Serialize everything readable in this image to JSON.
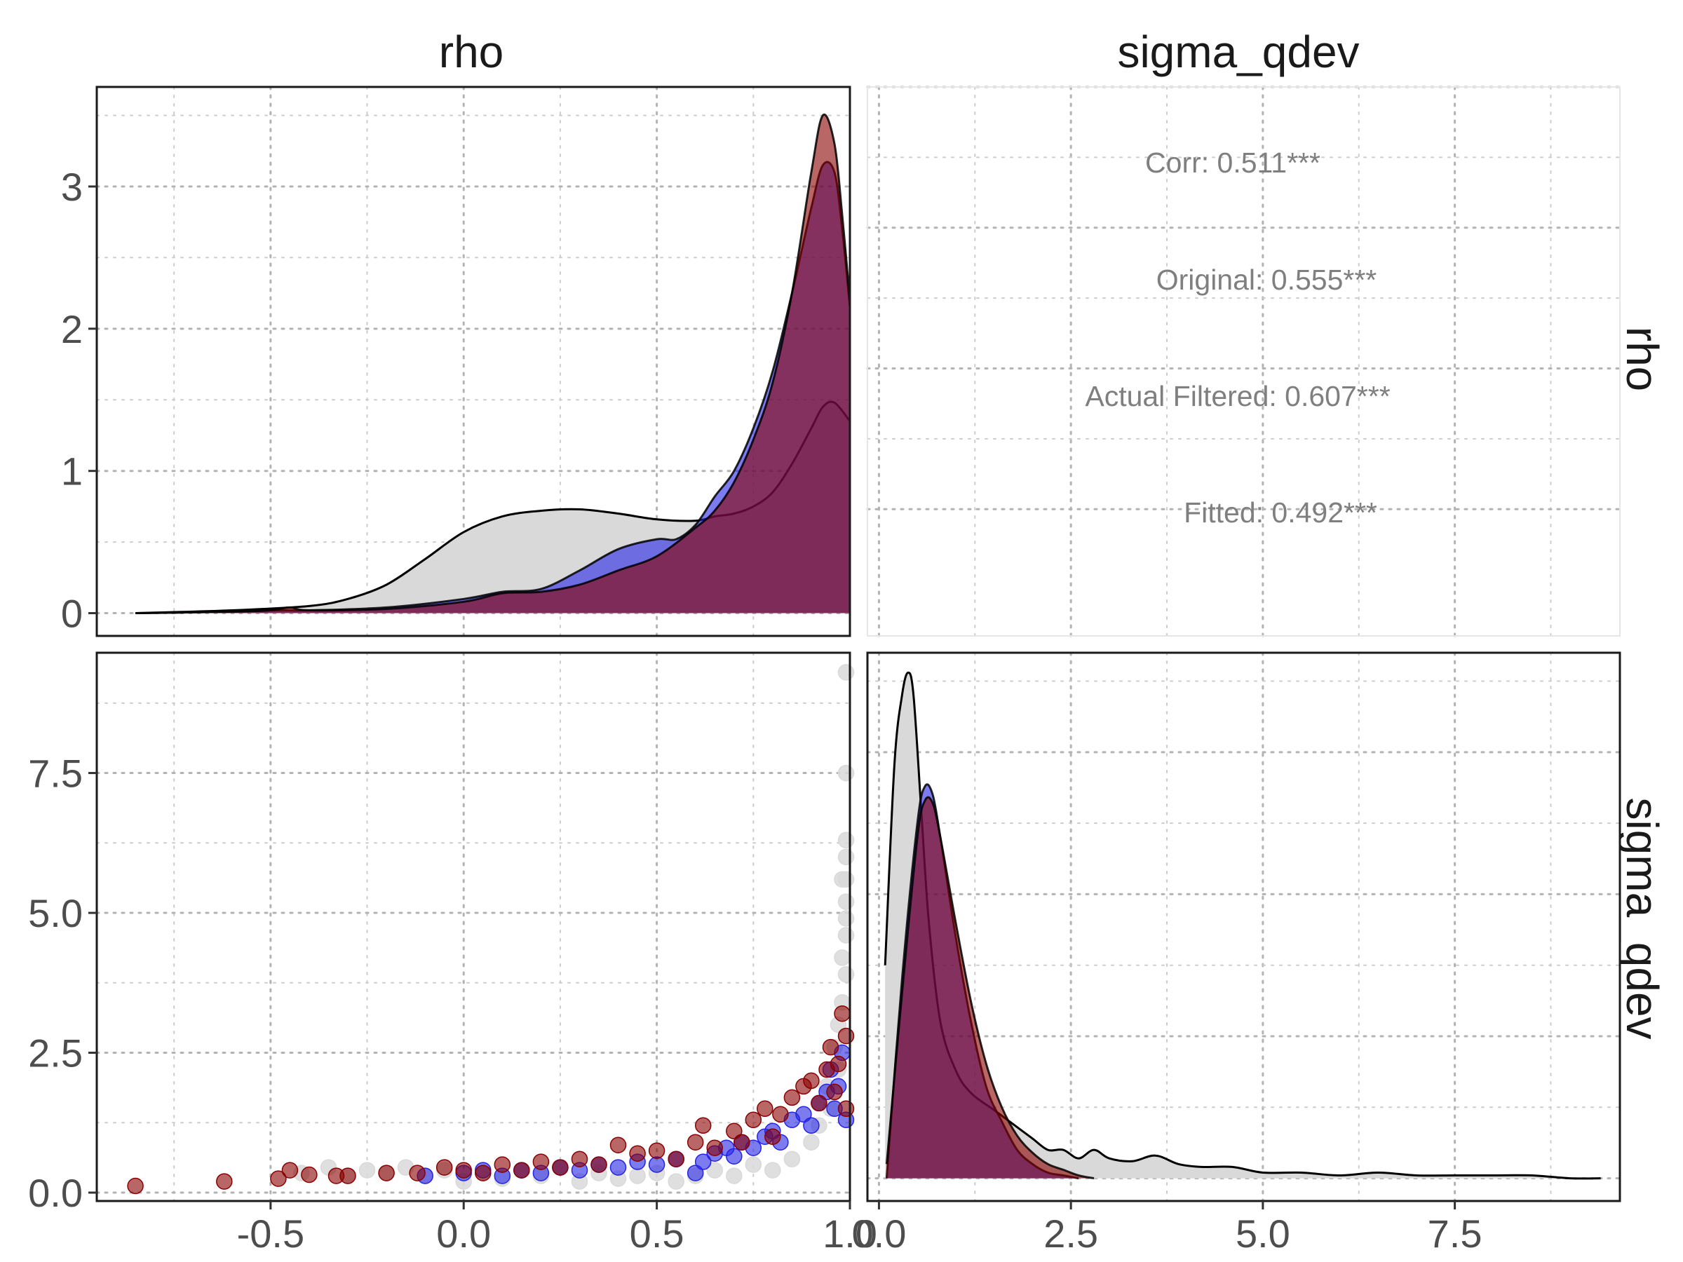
{
  "chart_data": {
    "type": "scatter-matrix",
    "variables": [
      "rho",
      "sigma_qdev"
    ],
    "groups": [
      {
        "name": "Original",
        "color": "#d9d9d9"
      },
      {
        "name": "Actual Filtered",
        "color": "#2424e6"
      },
      {
        "name": "Fitted",
        "color": "#8b0000"
      }
    ],
    "strip_labels": {
      "top": [
        "rho",
        "sigma_qdev"
      ],
      "right": [
        "rho",
        "sigma_qdev"
      ]
    },
    "axes": {
      "rho": {
        "lim": [
          -0.95,
          1.0
        ],
        "ticks": [
          -0.5,
          0.0,
          0.5,
          1.0
        ],
        "tick_labels": [
          "-0.5",
          "0.0",
          "0.5",
          "1.0"
        ]
      },
      "sigma_qdev": {
        "lim": [
          -0.15,
          9.65
        ],
        "ticks": [
          0.0,
          2.5,
          5.0,
          7.5
        ],
        "tick_labels": [
          "0.0",
          "2.5",
          "5.0",
          "7.5"
        ]
      },
      "rho_density": {
        "lim": [
          -0.16,
          3.7
        ],
        "ticks": [
          0,
          1,
          2,
          3
        ],
        "tick_labels": [
          "0",
          "1",
          "2",
          "3"
        ]
      },
      "sigma_density": {
        "lim": [
          -0.08,
          1.85
        ]
      }
    },
    "correlations": [
      {
        "text": "Corr: 0.511***"
      },
      {
        "text": "Original: 0.555***"
      },
      {
        "text": "Actual Filtered: 0.607***"
      },
      {
        "text": "Fitted: 0.492***"
      }
    ],
    "rho_density": {
      "Original": {
        "x": [
          -0.85,
          -0.6,
          -0.4,
          -0.3,
          -0.2,
          -0.1,
          0.0,
          0.1,
          0.2,
          0.3,
          0.4,
          0.5,
          0.6,
          0.65,
          0.7,
          0.75,
          0.8,
          0.85,
          0.9,
          0.93,
          0.96,
          1.0
        ],
        "y": [
          0.0,
          0.02,
          0.05,
          0.1,
          0.2,
          0.38,
          0.57,
          0.68,
          0.72,
          0.73,
          0.7,
          0.66,
          0.65,
          0.68,
          0.7,
          0.75,
          0.85,
          1.05,
          1.3,
          1.45,
          1.48,
          1.35
        ]
      },
      "Actual Filtered": {
        "x": [
          -0.85,
          -0.6,
          -0.5,
          -0.4,
          -0.2,
          0.0,
          0.1,
          0.2,
          0.3,
          0.4,
          0.5,
          0.55,
          0.6,
          0.65,
          0.7,
          0.75,
          0.8,
          0.85,
          0.9,
          0.93,
          0.96,
          0.98,
          1.0
        ],
        "y": [
          0.0,
          0.01,
          0.02,
          0.02,
          0.04,
          0.1,
          0.15,
          0.17,
          0.3,
          0.45,
          0.52,
          0.52,
          0.62,
          0.82,
          1.0,
          1.3,
          1.7,
          2.25,
          2.85,
          3.15,
          3.1,
          2.7,
          2.15
        ]
      },
      "Fitted": {
        "x": [
          -0.85,
          -0.6,
          -0.5,
          -0.45,
          -0.4,
          -0.2,
          0.0,
          0.1,
          0.2,
          0.3,
          0.4,
          0.5,
          0.6,
          0.65,
          0.7,
          0.75,
          0.8,
          0.85,
          0.9,
          0.93,
          0.96,
          0.98,
          1.0
        ],
        "y": [
          0.0,
          0.01,
          0.02,
          0.04,
          0.02,
          0.03,
          0.08,
          0.14,
          0.15,
          0.2,
          0.3,
          0.4,
          0.6,
          0.72,
          0.92,
          1.22,
          1.62,
          2.25,
          3.1,
          3.5,
          3.3,
          2.8,
          2.2
        ]
      }
    },
    "sigma_density": {
      "Original": {
        "x": [
          0.08,
          0.2,
          0.3,
          0.38,
          0.45,
          0.55,
          0.65,
          0.8,
          1.0,
          1.2,
          1.5,
          1.8,
          2.0,
          2.2,
          2.4,
          2.6,
          2.8,
          3.0,
          3.3,
          3.6,
          3.9,
          4.2,
          4.6,
          5.0,
          5.5,
          6.0,
          6.5,
          7.0,
          7.5,
          8.0,
          8.5,
          9.0,
          9.4
        ],
        "y": [
          0.75,
          1.45,
          1.7,
          1.78,
          1.7,
          1.3,
          0.9,
          0.55,
          0.38,
          0.3,
          0.24,
          0.18,
          0.14,
          0.1,
          0.1,
          0.07,
          0.1,
          0.07,
          0.06,
          0.08,
          0.05,
          0.04,
          0.04,
          0.02,
          0.02,
          0.01,
          0.02,
          0.01,
          0.01,
          0.01,
          0.01,
          0.0,
          0.0
        ]
      },
      "Actual Filtered": {
        "x": [
          0.1,
          0.3,
          0.5,
          0.6,
          0.7,
          0.8,
          1.0,
          1.2,
          1.4,
          1.6,
          1.8,
          2.0,
          2.2,
          2.4,
          2.6
        ],
        "y": [
          0.0,
          0.7,
          1.25,
          1.38,
          1.35,
          1.2,
          0.85,
          0.55,
          0.32,
          0.2,
          0.1,
          0.05,
          0.02,
          0.01,
          0.0
        ]
      },
      "Fitted": {
        "x": [
          0.1,
          0.3,
          0.5,
          0.6,
          0.7,
          0.8,
          1.0,
          1.2,
          1.4,
          1.6,
          1.8,
          2.0,
          2.2,
          2.4,
          2.6,
          2.8
        ],
        "y": [
          0.05,
          0.65,
          1.2,
          1.33,
          1.32,
          1.2,
          0.9,
          0.62,
          0.4,
          0.25,
          0.15,
          0.09,
          0.05,
          0.03,
          0.01,
          0.0
        ]
      }
    },
    "scatter": {
      "Original": {
        "x": [
          -0.42,
          -0.35,
          -0.3,
          -0.25,
          -0.2,
          -0.15,
          -0.1,
          -0.05,
          0.0,
          0.05,
          0.1,
          0.15,
          0.2,
          0.25,
          0.3,
          0.35,
          0.4,
          0.45,
          0.5,
          0.55,
          0.6,
          0.65,
          0.7,
          0.75,
          0.8,
          0.85,
          0.9,
          0.92,
          0.94,
          0.95,
          0.96,
          0.97,
          0.97,
          0.98,
          0.98,
          0.98,
          0.99,
          0.99,
          0.99,
          0.99,
          0.99,
          0.99,
          0.99,
          0.99,
          0.99
        ],
        "y": [
          0.35,
          0.45,
          0.3,
          0.4,
          0.35,
          0.45,
          0.3,
          0.4,
          0.2,
          0.35,
          0.25,
          0.4,
          0.3,
          0.45,
          0.2,
          0.35,
          0.25,
          0.3,
          0.35,
          0.2,
          0.3,
          0.4,
          0.3,
          0.5,
          0.4,
          0.6,
          0.9,
          1.2,
          1.9,
          1.5,
          2.6,
          2.2,
          3.0,
          3.4,
          4.2,
          5.6,
          3.9,
          4.6,
          5.2,
          5.6,
          6.0,
          6.3,
          7.5,
          9.3,
          4.9
        ]
      },
      "Actual Filtered": {
        "x": [
          -0.1,
          0.0,
          0.05,
          0.1,
          0.15,
          0.2,
          0.25,
          0.3,
          0.35,
          0.4,
          0.45,
          0.5,
          0.55,
          0.6,
          0.62,
          0.65,
          0.68,
          0.7,
          0.72,
          0.75,
          0.78,
          0.8,
          0.82,
          0.85,
          0.88,
          0.9,
          0.92,
          0.94,
          0.95,
          0.96,
          0.97,
          0.98,
          0.99
        ],
        "y": [
          0.3,
          0.35,
          0.4,
          0.3,
          0.4,
          0.35,
          0.45,
          0.4,
          0.5,
          0.45,
          0.55,
          0.5,
          0.6,
          0.35,
          0.55,
          0.7,
          0.8,
          0.65,
          0.9,
          0.8,
          1.0,
          1.1,
          0.9,
          1.3,
          1.4,
          1.2,
          1.6,
          1.8,
          2.2,
          1.5,
          1.9,
          2.5,
          1.3
        ]
      },
      "Fitted": {
        "x": [
          -0.85,
          -0.62,
          -0.48,
          -0.45,
          -0.4,
          -0.33,
          -0.3,
          -0.2,
          -0.12,
          -0.05,
          0.0,
          0.05,
          0.1,
          0.15,
          0.2,
          0.25,
          0.3,
          0.35,
          0.4,
          0.45,
          0.5,
          0.55,
          0.6,
          0.62,
          0.65,
          0.7,
          0.72,
          0.75,
          0.78,
          0.8,
          0.82,
          0.85,
          0.88,
          0.9,
          0.92,
          0.94,
          0.95,
          0.96,
          0.97,
          0.98,
          0.99,
          0.99
        ],
        "y": [
          0.12,
          0.2,
          0.25,
          0.4,
          0.32,
          0.3,
          0.3,
          0.35,
          0.35,
          0.45,
          0.4,
          0.35,
          0.5,
          0.4,
          0.55,
          0.45,
          0.6,
          0.5,
          0.85,
          0.7,
          0.75,
          0.6,
          0.9,
          1.2,
          0.8,
          1.1,
          0.9,
          1.3,
          1.5,
          1.0,
          1.4,
          1.7,
          1.9,
          2.0,
          1.6,
          2.2,
          2.6,
          1.8,
          2.3,
          3.2,
          2.8,
          1.5
        ]
      }
    }
  }
}
